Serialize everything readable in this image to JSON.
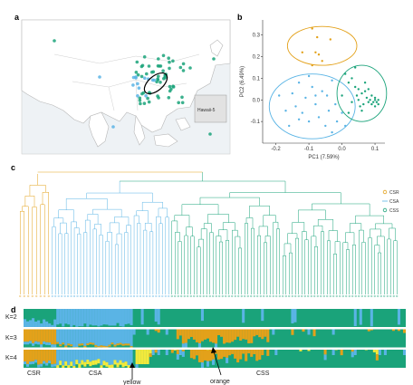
{
  "panels": {
    "a": "a",
    "b": "b",
    "c": "c",
    "d": "d"
  },
  "map": {
    "inset_label": "Hawaii-5",
    "marker_colors": [
      "#1aa37a",
      "#5ab4e5"
    ]
  },
  "colors": {
    "CSR": "#e3a11a",
    "CSA": "#5ab4e5",
    "CSS": "#1aa37a",
    "yellow": "#f2e93c"
  },
  "legend": [
    "CSR",
    "CSA",
    "CSS"
  ],
  "structure": {
    "k_labels": [
      "K=2",
      "K=3",
      "K=4"
    ],
    "group_labels": [
      "CSR",
      "CSA",
      "CSS"
    ],
    "annotations": [
      "yellow",
      "orange"
    ]
  },
  "chart_data": {
    "type": "scatter",
    "xlabel": "PC1 (7.59%)",
    "ylabel": "PC2 (6.49%)",
    "xlim": [
      -0.24,
      0.13
    ],
    "ylim": [
      -0.2,
      0.37
    ],
    "xticks": [
      "-0.2",
      "-0.1",
      "0.0",
      "0.1"
    ],
    "yticks": [
      "-0.1",
      "0.0",
      "0.1",
      "0.2",
      "0.3"
    ],
    "grid": false,
    "series": [
      {
        "name": "CSR",
        "color": "#e3a11a",
        "points": [
          [
            -0.09,
            0.33
          ],
          [
            -0.075,
            0.29
          ],
          [
            -0.08,
            0.22
          ],
          [
            -0.07,
            0.21
          ],
          [
            -0.035,
            0.28
          ],
          [
            -0.12,
            0.22
          ],
          [
            -0.06,
            0.18
          ],
          [
            -0.09,
            0.16
          ]
        ]
      },
      {
        "name": "CSA",
        "color": "#5ab4e5",
        "points": [
          [
            -0.19,
            0.02
          ],
          [
            -0.17,
            -0.05
          ],
          [
            -0.15,
            0.03
          ],
          [
            -0.14,
            -0.03
          ],
          [
            -0.13,
            0.08
          ],
          [
            -0.12,
            -0.06
          ],
          [
            -0.11,
            0.01
          ],
          [
            -0.1,
            -0.1
          ],
          [
            -0.09,
            0.06
          ],
          [
            -0.08,
            -0.02
          ],
          [
            -0.07,
            -0.08
          ],
          [
            -0.06,
            0.04
          ],
          [
            -0.05,
            -0.12
          ],
          [
            -0.045,
            0.02
          ],
          [
            -0.04,
            -0.05
          ],
          [
            -0.03,
            0.09
          ],
          [
            -0.02,
            -0.02
          ],
          [
            -0.015,
            -0.1
          ],
          [
            0.0,
            -0.06
          ],
          [
            -0.16,
            -0.12
          ],
          [
            -0.1,
            0.11
          ],
          [
            -0.13,
            -0.09
          ],
          [
            -0.08,
            0.02
          ],
          [
            -0.03,
            -0.15
          ],
          [
            0.01,
            -0.12
          ]
        ]
      },
      {
        "name": "CSS",
        "color": "#1aa37a",
        "points": [
          [
            0.01,
            0.12
          ],
          [
            0.02,
            0.08
          ],
          [
            0.03,
            0.1
          ],
          [
            0.04,
            0.06
          ],
          [
            0.05,
            0.05
          ],
          [
            0.05,
            0.0
          ],
          [
            0.06,
            0.03
          ],
          [
            0.065,
            -0.02
          ],
          [
            0.07,
            0.04
          ],
          [
            0.075,
            0.01
          ],
          [
            0.08,
            -0.01
          ],
          [
            0.085,
            0.0
          ],
          [
            0.09,
            -0.02
          ],
          [
            0.095,
            -0.01
          ],
          [
            0.1,
            0.0
          ],
          [
            0.1,
            -0.03
          ],
          [
            0.105,
            -0.01
          ],
          [
            0.11,
            -0.02
          ],
          [
            0.03,
            -0.01
          ],
          [
            0.04,
            0.15
          ],
          [
            0.0,
            0.02
          ],
          [
            0.02,
            -0.06
          ],
          [
            0.06,
            -0.05
          ],
          [
            0.07,
            0.08
          ],
          [
            0.09,
            0.02
          ],
          [
            0.08,
            0.05
          ],
          [
            0.11,
            0.0
          ],
          [
            0.1,
            0.01
          ],
          [
            0.045,
            0.02
          ],
          [
            0.055,
            -0.03
          ]
        ]
      }
    ],
    "ellipses": [
      {
        "group": "CSR",
        "cx": -0.06,
        "cy": 0.25,
        "rx": 0.105,
        "ry": 0.09,
        "color": "#e3a11a"
      },
      {
        "group": "CSA",
        "cx": -0.09,
        "cy": -0.03,
        "rx": 0.13,
        "ry": 0.15,
        "color": "#5ab4e5"
      },
      {
        "group": "CSS",
        "cx": 0.06,
        "cy": 0.03,
        "rx": 0.075,
        "ry": 0.13,
        "color": "#1aa37a"
      }
    ]
  }
}
